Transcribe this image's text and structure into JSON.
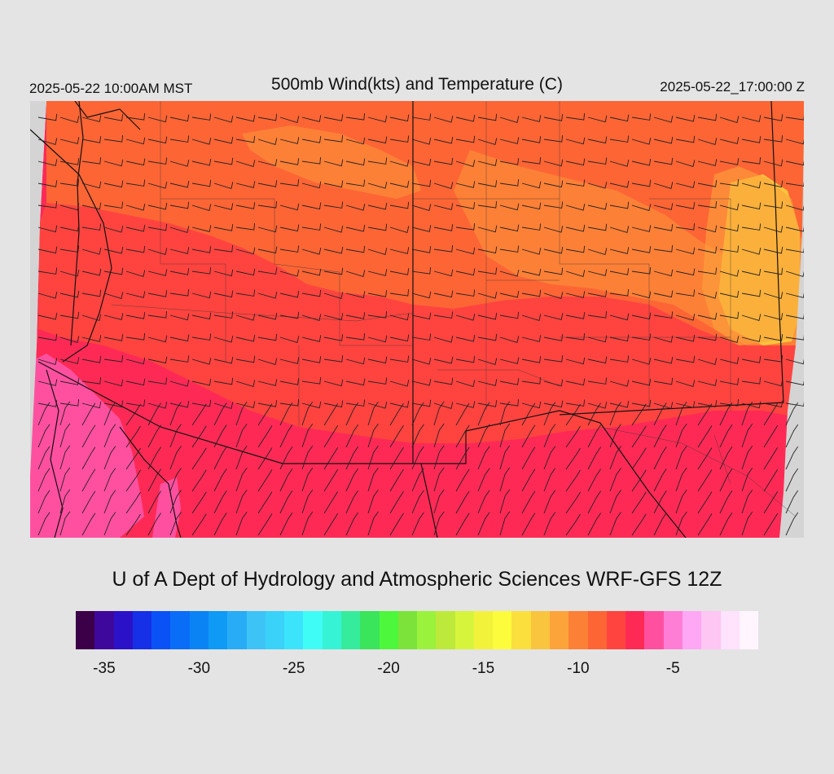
{
  "header": {
    "local_time": "2025-05-22 10:00AM MST",
    "title": "500mb Wind(kts) and Temperature (C)",
    "valid_time": "2025-05-22_17:00:00 Z"
  },
  "credit": "U of A Dept of Hydrology and Atmospheric Sciences WRF-GFS 12Z",
  "legend": {
    "colors": [
      "#3b0047",
      "#3f089c",
      "#2b12c8",
      "#1530e6",
      "#0a52f5",
      "#0a6df8",
      "#0a84f5",
      "#0f9af5",
      "#27acf5",
      "#3ec3f7",
      "#3ad2f8",
      "#3be4fb",
      "#3ffcf6",
      "#36f3d6",
      "#35ec9c",
      "#3ae45b",
      "#4df73c",
      "#7be33a",
      "#9bf23c",
      "#bde93b",
      "#d7f43d",
      "#f3f23b",
      "#fdfc3c",
      "#fbdf3d",
      "#f9c43e",
      "#fca33a",
      "#fd8037",
      "#fd6535",
      "#ff4440",
      "#fe2a55",
      "#ff50a0",
      "#fe7ed6",
      "#fea7f4",
      "#fec6f3",
      "#ffe2fc",
      "#fef5fe"
    ],
    "ticks": [
      "-35",
      "-30",
      "-25",
      "-20",
      "-15",
      "-10",
      "-5"
    ],
    "min": -36,
    "max": -1
  },
  "map": {
    "field": "500mb temperature (C) with wind barbs (kts)",
    "dominant_temps_c": [
      -10,
      -9,
      -8,
      -7,
      -6
    ],
    "palette": {
      "warm_east": "#fd8037",
      "orange": "#fd6535",
      "red": "#ff4440",
      "crimson": "#fe2a55",
      "pink": "#ff50a0",
      "yellow": "#f9c43e",
      "bg": "#d4d4d4"
    }
  }
}
